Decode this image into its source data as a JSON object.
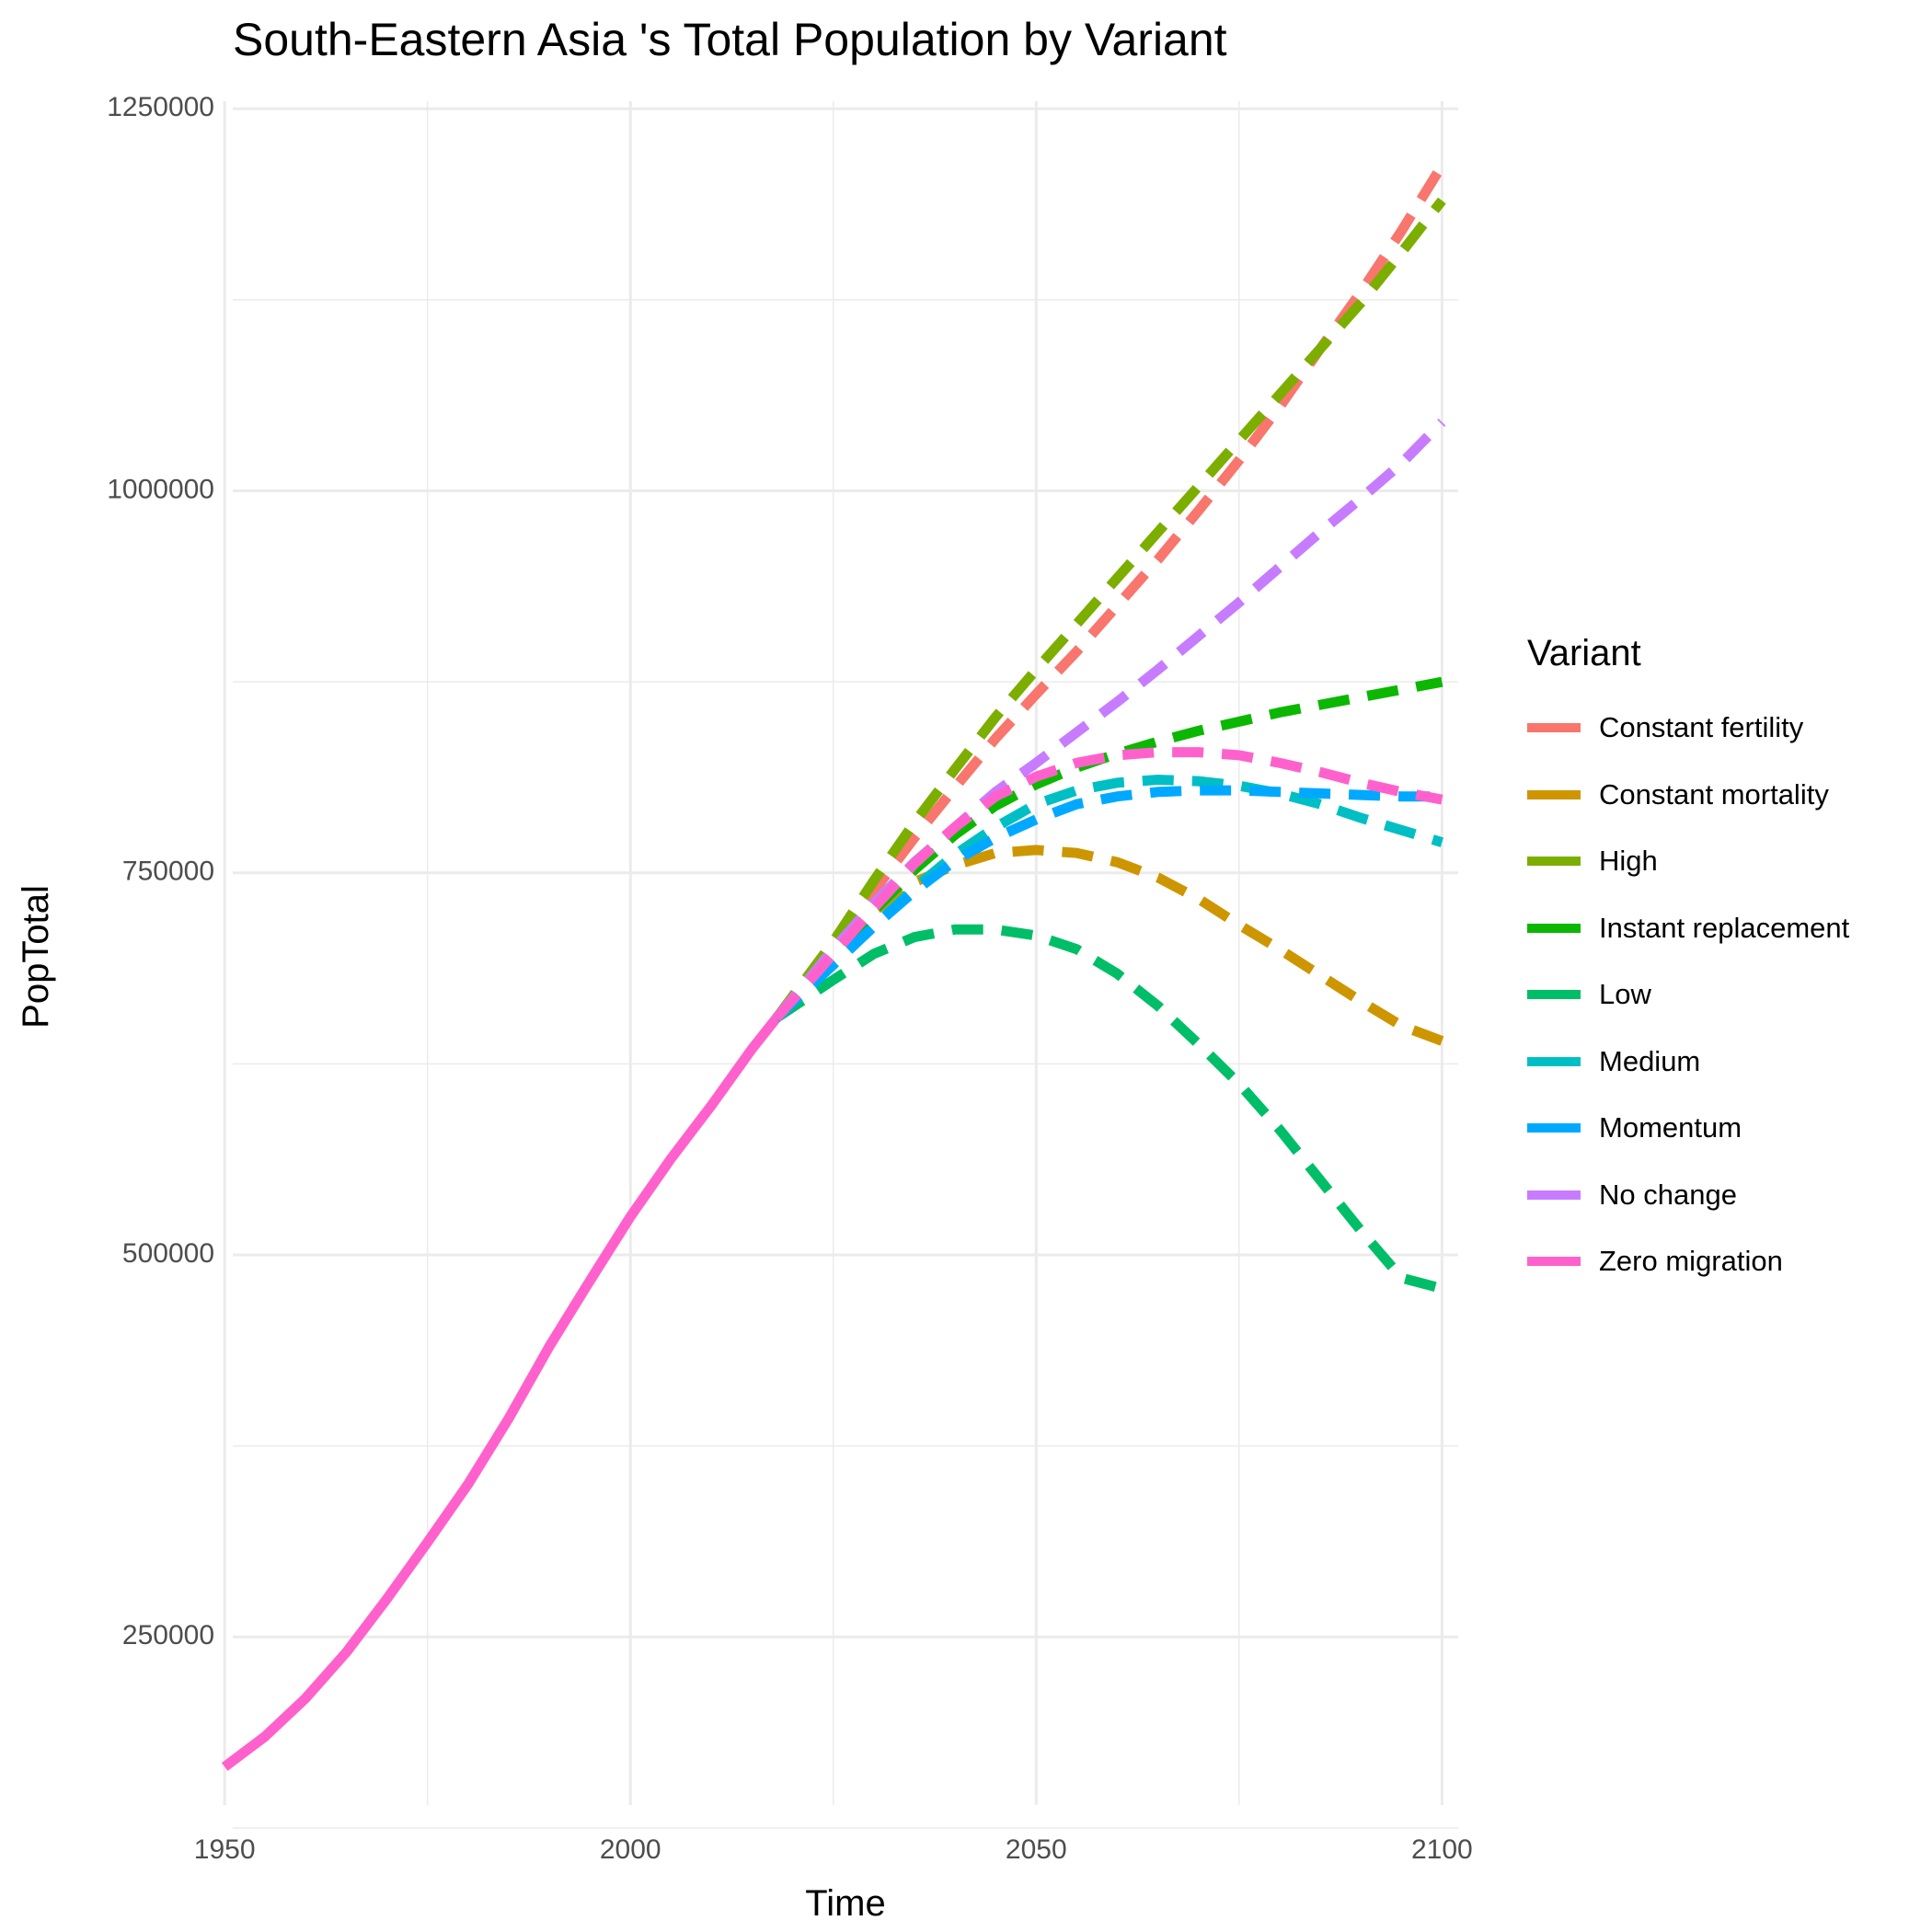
{
  "title": "South-Eastern Asia 's Total Population by Variant",
  "chart_data": {
    "type": "line",
    "title": "South-Eastern Asia 's Total Population by Variant",
    "xlabel": "Time",
    "ylabel": "PopTotal",
    "xlim": [
      1951,
      2102
    ],
    "ylim": [
      140000,
      1255000
    ],
    "x_ticks": [
      1950,
      2000,
      2050,
      2100
    ],
    "y_ticks": [
      250000,
      500000,
      750000,
      1000000,
      1250000
    ],
    "y_tick_labels": [
      "250000",
      "500000",
      "750000",
      "1000000",
      "1250000"
    ],
    "grid": true,
    "legend_title": "Variant",
    "legend_position": "right",
    "historical": {
      "name": "Zero migration",
      "x": [
        1950,
        1955,
        1960,
        1965,
        1970,
        1975,
        1980,
        1985,
        1990,
        1995,
        2000,
        2005,
        2010,
        2015,
        2018
      ],
      "y": [
        165000,
        185000,
        210000,
        240000,
        275000,
        312000,
        350000,
        393000,
        440000,
        483000,
        525000,
        563000,
        598000,
        635000,
        655000
      ]
    },
    "series": [
      {
        "name": "Constant fertility",
        "color": "#F8766D",
        "x": [
          2018,
          2025,
          2030,
          2035,
          2040,
          2045,
          2050,
          2055,
          2060,
          2065,
          2070,
          2075,
          2080,
          2085,
          2090,
          2095,
          2100
        ],
        "y": [
          655000,
          700000,
          738000,
          773000,
          806000,
          838000,
          867000,
          895000,
          925000,
          955000,
          987000,
          1020000,
          1055000,
          1093000,
          1130000,
          1170000,
          1213000
        ]
      },
      {
        "name": "Constant mortality",
        "color": "#CD9600",
        "x": [
          2018,
          2025,
          2030,
          2035,
          2040,
          2045,
          2050,
          2055,
          2060,
          2065,
          2070,
          2075,
          2080,
          2085,
          2090,
          2095,
          2100
        ],
        "y": [
          655000,
          700000,
          725000,
          744000,
          755000,
          763000,
          765000,
          763000,
          757000,
          747000,
          733000,
          716000,
          700000,
          683000,
          666000,
          650000,
          640000
        ]
      },
      {
        "name": "High",
        "color": "#7CAE00",
        "x": [
          2018,
          2025,
          2030,
          2035,
          2040,
          2045,
          2050,
          2055,
          2060,
          2065,
          2070,
          2075,
          2080,
          2085,
          2090,
          2095,
          2100
        ],
        "y": [
          655000,
          705000,
          745000,
          783000,
          818000,
          852000,
          883000,
          913000,
          943000,
          973000,
          1003000,
          1033000,
          1063000,
          1093000,
          1123000,
          1156000,
          1190000
        ]
      },
      {
        "name": "Instant replacement",
        "color": "#0CB702",
        "x": [
          2018,
          2025,
          2030,
          2035,
          2040,
          2045,
          2050,
          2055,
          2060,
          2065,
          2070,
          2075,
          2080,
          2085,
          2090,
          2095,
          2100
        ],
        "y": [
          655000,
          695000,
          725000,
          752000,
          775000,
          794000,
          808000,
          819000,
          828000,
          836000,
          843000,
          849000,
          855000,
          860000,
          865000,
          870000,
          875000
        ]
      },
      {
        "name": "Low",
        "color": "#00BE67",
        "x": [
          2018,
          2025,
          2030,
          2035,
          2040,
          2045,
          2050,
          2055,
          2060,
          2065,
          2070,
          2075,
          2080,
          2085,
          2090,
          2095,
          2100
        ],
        "y": [
          655000,
          680000,
          697000,
          708000,
          713000,
          713000,
          709000,
          700000,
          684000,
          663000,
          638000,
          612000,
          582000,
          549000,
          516000,
          485000,
          478000
        ]
      },
      {
        "name": "Medium",
        "color": "#00BFC4",
        "x": [
          2018,
          2025,
          2030,
          2035,
          2040,
          2045,
          2050,
          2055,
          2060,
          2065,
          2070,
          2075,
          2080,
          2085,
          2090,
          2095,
          2100
        ],
        "y": [
          655000,
          690000,
          715000,
          740000,
          762000,
          780000,
          795000,
          804000,
          809000,
          811000,
          810000,
          807000,
          802000,
          795000,
          786000,
          778000,
          770000
        ]
      },
      {
        "name": "Momentum",
        "color": "#00A9FF",
        "x": [
          2018,
          2025,
          2030,
          2035,
          2040,
          2045,
          2050,
          2055,
          2060,
          2065,
          2070,
          2075,
          2080,
          2085,
          2090,
          2095,
          2100
        ],
        "y": [
          655000,
          690000,
          715000,
          738000,
          758000,
          773000,
          785000,
          795000,
          800000,
          803000,
          804000,
          804000,
          803000,
          802000,
          801000,
          800000,
          800000
        ]
      },
      {
        "name": "No change",
        "color": "#C77CFF",
        "x": [
          2018,
          2025,
          2030,
          2035,
          2040,
          2045,
          2050,
          2055,
          2060,
          2065,
          2070,
          2075,
          2080,
          2085,
          2090,
          2095,
          2100
        ],
        "y": [
          655000,
          700000,
          730000,
          757000,
          780000,
          803000,
          822000,
          842000,
          862000,
          883000,
          905000,
          927000,
          950000,
          973000,
          995000,
          1018000,
          1045000
        ]
      },
      {
        "name": "Zero migration",
        "color": "#FF61CC",
        "x": [
          2018,
          2025,
          2030,
          2035,
          2040,
          2045,
          2050,
          2055,
          2060,
          2065,
          2070,
          2075,
          2080,
          2085,
          2090,
          2095,
          2100
        ],
        "y": [
          655000,
          697000,
          727000,
          756000,
          780000,
          800000,
          813000,
          822000,
          827000,
          829000,
          829000,
          827000,
          822000,
          816000,
          809000,
          803000,
          798000
        ]
      }
    ]
  }
}
